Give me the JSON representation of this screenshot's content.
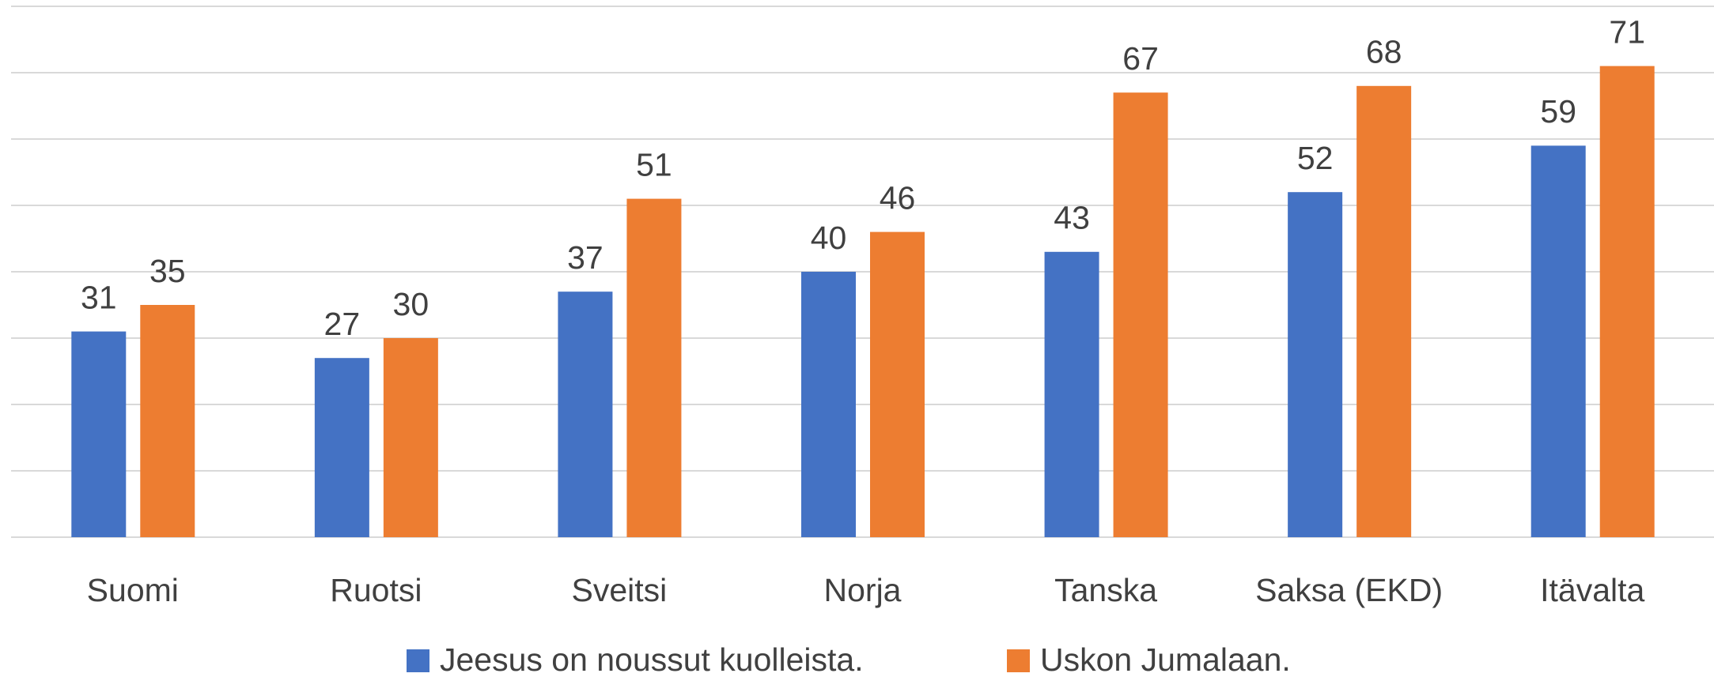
{
  "chart_data": {
    "type": "bar",
    "categories": [
      "Suomi",
      "Ruotsi",
      "Sveitsi",
      "Norja",
      "Tanska",
      "Saksa (EKD)",
      "Itävalta"
    ],
    "series": [
      {
        "name": "Jeesus on noussut kuolleista.",
        "color": "#4472c4",
        "values": [
          31,
          27,
          37,
          40,
          43,
          52,
          59
        ]
      },
      {
        "name": "Uskon Jumalaan.",
        "color": "#ed7d31",
        "values": [
          35,
          30,
          51,
          46,
          67,
          68,
          71
        ]
      }
    ],
    "ylim": [
      0,
      80
    ],
    "yticks": [
      0,
      10,
      20,
      30,
      40,
      50,
      60,
      70,
      80
    ],
    "grid": true,
    "legend": "bottom"
  }
}
